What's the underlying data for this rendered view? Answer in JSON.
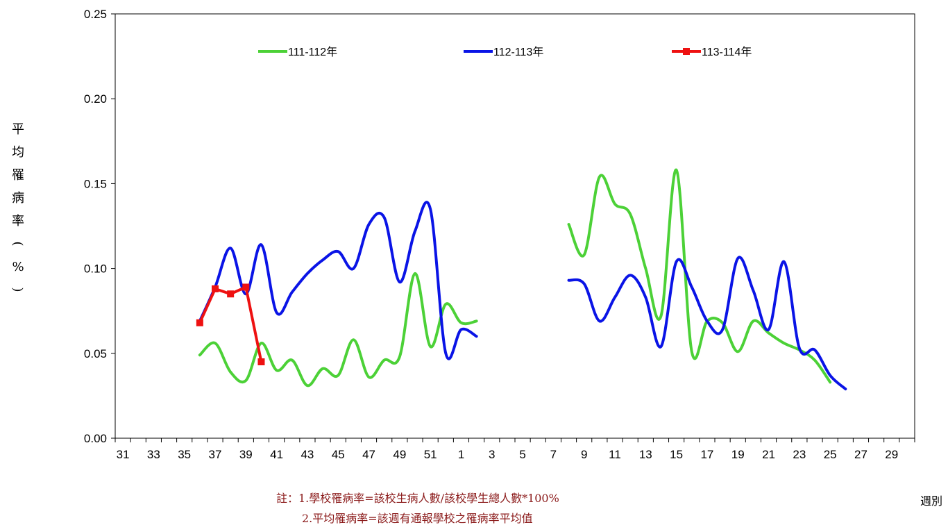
{
  "chart_data": {
    "type": "line",
    "xlabel": "週別",
    "ylabel": "平均罹病率(%)",
    "ylim": [
      0,
      0.25
    ],
    "ytick_labels": [
      "0.00",
      "0.05",
      "0.10",
      "0.15",
      "0.20",
      "0.25"
    ],
    "weeks": [
      31,
      32,
      33,
      34,
      35,
      36,
      37,
      38,
      39,
      40,
      41,
      42,
      43,
      44,
      45,
      46,
      47,
      48,
      49,
      50,
      51,
      52,
      1,
      2,
      3,
      4,
      5,
      6,
      7,
      8,
      9,
      10,
      11,
      12,
      13,
      14,
      15,
      16,
      17,
      18,
      19,
      20,
      21,
      22,
      23,
      24,
      25,
      26,
      27,
      28,
      29,
      30
    ],
    "x_tick_labels": [
      "31",
      "33",
      "35",
      "37",
      "39",
      "41",
      "43",
      "45",
      "47",
      "49",
      "51",
      "1",
      "3",
      "5",
      "7",
      "9",
      "11",
      "13",
      "15",
      "17",
      "19",
      "21",
      "23",
      "25",
      "27",
      "29"
    ],
    "legend_position": "top",
    "grid": false,
    "series": [
      {
        "name": "111-112年",
        "color": "#4cd137",
        "marker": "none",
        "smooth": true,
        "values": [
          null,
          null,
          null,
          null,
          null,
          0.049,
          0.056,
          0.039,
          0.034,
          0.056,
          0.04,
          0.046,
          0.031,
          0.041,
          0.037,
          0.058,
          0.036,
          0.046,
          0.048,
          0.097,
          0.054,
          0.079,
          0.068,
          0.069,
          null,
          null,
          null,
          null,
          null,
          0.126,
          0.108,
          0.154,
          0.138,
          0.132,
          0.1,
          0.072,
          0.158,
          0.051,
          0.069,
          0.068,
          0.051,
          0.069,
          0.062,
          0.056,
          0.052,
          0.046,
          0.033,
          null,
          null,
          null,
          null,
          null
        ]
      },
      {
        "name": "112-113年",
        "color": "#0a14e6",
        "marker": "none",
        "smooth": true,
        "values": [
          null,
          null,
          null,
          null,
          null,
          0.069,
          0.089,
          0.112,
          0.085,
          0.114,
          0.074,
          0.086,
          0.097,
          0.105,
          0.11,
          0.1,
          0.126,
          0.13,
          0.092,
          0.122,
          0.135,
          0.05,
          0.064,
          0.06,
          null,
          null,
          null,
          null,
          null,
          0.093,
          0.091,
          0.069,
          0.083,
          0.096,
          0.083,
          0.054,
          0.104,
          0.089,
          0.069,
          0.064,
          0.106,
          0.087,
          0.064,
          0.104,
          0.053,
          0.052,
          0.037,
          0.029,
          null,
          null,
          null,
          null
        ]
      },
      {
        "name": "113-114年",
        "color": "#ee1111",
        "marker": "square",
        "smooth": false,
        "values": [
          null,
          null,
          null,
          null,
          null,
          0.068,
          0.088,
          0.085,
          0.089,
          0.045,
          null,
          null,
          null,
          null,
          null,
          null,
          null,
          null,
          null,
          null,
          null,
          null,
          null,
          null,
          null,
          null,
          null,
          null,
          null,
          null,
          null,
          null,
          null,
          null,
          null,
          null,
          null,
          null,
          null,
          null,
          null,
          null,
          null,
          null,
          null,
          null,
          null,
          null,
          null,
          null,
          null,
          null
        ]
      }
    ]
  },
  "notes": {
    "line1": "註：1.學校罹病率=該校生病人數/該校學生總人數*100%",
    "line2": "2.平均罹病率=該週有通報學校之罹病率平均值"
  }
}
